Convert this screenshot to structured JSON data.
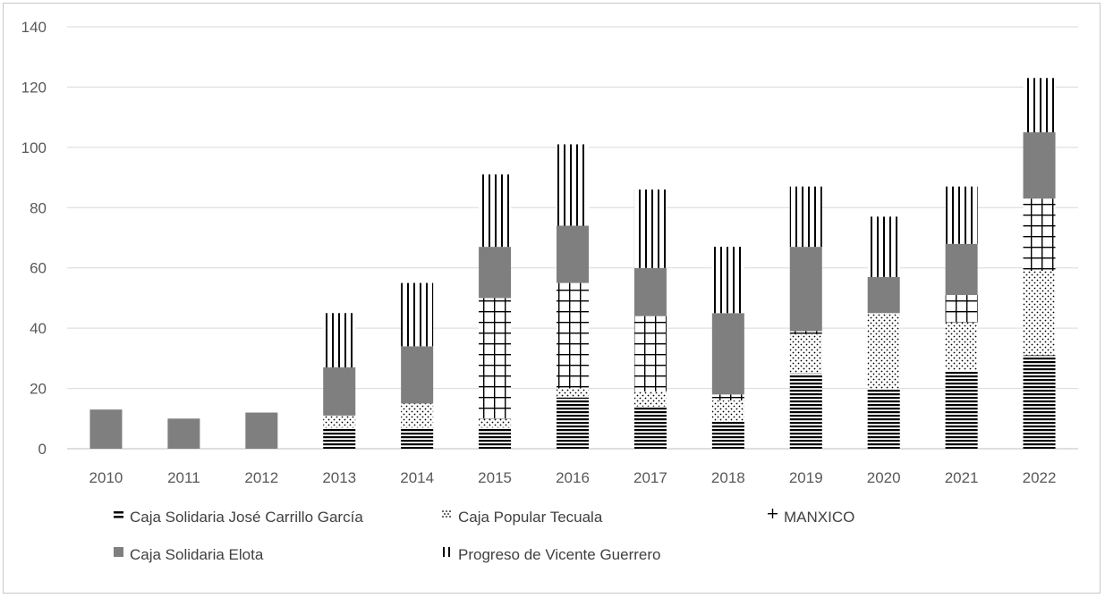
{
  "chart_data": {
    "type": "bar",
    "stacked": true,
    "title": "",
    "xlabel": "",
    "ylabel": "",
    "ylim": [
      0,
      140
    ],
    "yticks": [
      0,
      20,
      40,
      60,
      80,
      100,
      120,
      140
    ],
    "grid": true,
    "legend_position": "bottom",
    "categories": [
      "2010",
      "2011",
      "2012",
      "2013",
      "2014",
      "2015",
      "2016",
      "2017",
      "2018",
      "2019",
      "2020",
      "2021",
      "2022"
    ],
    "series": [
      {
        "name": "Caja Solidaria José Carrillo García",
        "pattern": "horizontal",
        "values": [
          0,
          0,
          0,
          7,
          7,
          7,
          17,
          14,
          9,
          25,
          20,
          26,
          31
        ]
      },
      {
        "name": "Caja Popular Tecuala",
        "pattern": "dots",
        "values": [
          0,
          0,
          0,
          4,
          8,
          3,
          3,
          5,
          7,
          13,
          25,
          16,
          28
        ]
      },
      {
        "name": "MANXICO",
        "pattern": "grid",
        "values": [
          0,
          0,
          0,
          0,
          0,
          40,
          35,
          25,
          2,
          1,
          0,
          9,
          24
        ]
      },
      {
        "name": "Caja Solidaria Elota",
        "pattern": "solid",
        "values": [
          13,
          10,
          12,
          16,
          19,
          17,
          19,
          16,
          27,
          28,
          12,
          17,
          22
        ]
      },
      {
        "name": "Progreso de Vicente Guerrero",
        "pattern": "vertical",
        "values": [
          0,
          0,
          0,
          18,
          21,
          24,
          27,
          26,
          22,
          20,
          20,
          19,
          18
        ]
      }
    ]
  },
  "colors": {
    "grid": "#d9d9d9",
    "bar": "#7f7f7f",
    "ink": "#000000",
    "text": "#595959"
  }
}
